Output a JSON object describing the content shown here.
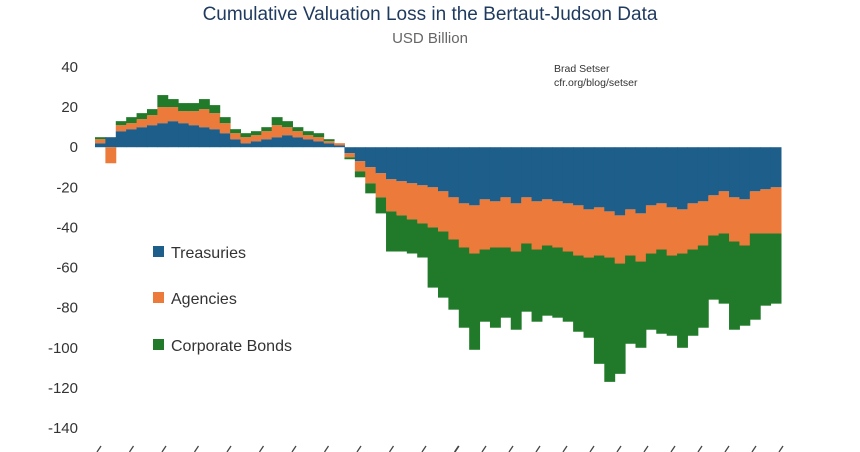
{
  "chart_data": {
    "type": "bar",
    "stacked": true,
    "title": "Cumulative Valuation Loss in the Bertaut-Judson Data",
    "subtitle": "USD Billion",
    "attribution": [
      "Brad Setser",
      "cfr.org/blog/setser"
    ],
    "ylim": [
      -140,
      40
    ],
    "yticks": [
      40,
      20,
      0,
      -20,
      -40,
      -60,
      -80,
      -100,
      -120,
      -140
    ],
    "grid": false,
    "legend_position": "left-center",
    "series": [
      {
        "name": "Treasuries",
        "color": "#1d5f8a",
        "values": [
          2,
          5,
          8,
          9,
          10,
          11,
          12,
          13,
          12,
          11,
          10,
          9,
          7,
          4,
          2,
          3,
          4,
          5,
          6,
          5,
          4,
          3,
          2,
          1,
          -3,
          -7,
          -10,
          -13,
          -16,
          -17,
          -18,
          -19,
          -20,
          -22,
          -25,
          -28,
          -29,
          -26,
          -27,
          -25,
          -28,
          -25,
          -27,
          -26,
          -27,
          -28,
          -29,
          -31,
          -30,
          -32,
          -34,
          -31,
          -33,
          -29,
          -28,
          -30,
          -31,
          -28,
          -27,
          -24,
          -22,
          -25,
          -26,
          -22,
          -21,
          -20
        ]
      },
      {
        "name": "Agencies",
        "color": "#ec7a3a",
        "values": [
          2,
          -8,
          3,
          3,
          4,
          5,
          8,
          7,
          6,
          7,
          9,
          8,
          5,
          3,
          3,
          3,
          4,
          6,
          4,
          3,
          2,
          2,
          1,
          1,
          -2,
          -5,
          -8,
          -12,
          -16,
          -17,
          -18,
          -19,
          -20,
          -20,
          -21,
          -22,
          -24,
          -25,
          -23,
          -25,
          -24,
          -23,
          -24,
          -23,
          -23,
          -24,
          -25,
          -24,
          -24,
          -23,
          -24,
          -23,
          -24,
          -24,
          -23,
          -24,
          -22,
          -23,
          -22,
          -20,
          -21,
          -22,
          -23,
          -21,
          -22,
          -23
        ]
      },
      {
        "name": "Corporate Bonds",
        "color": "#217a2a",
        "values": [
          1,
          0,
          2,
          3,
          3,
          3,
          6,
          4,
          4,
          4,
          5,
          4,
          3,
          2,
          2,
          2,
          2,
          4,
          3,
          2,
          2,
          2,
          1,
          0,
          -1,
          -3,
          -5,
          -8,
          -20,
          -18,
          -17,
          -17,
          -30,
          -33,
          -35,
          -40,
          -48,
          -36,
          -40,
          -35,
          -39,
          -34,
          -36,
          -35,
          -35,
          -35,
          -38,
          -40,
          -54,
          -62,
          -55,
          -44,
          -43,
          -38,
          -42,
          -40,
          -47,
          -43,
          -41,
          -32,
          -35,
          -44,
          -40,
          -43,
          -36,
          -35
        ]
      }
    ]
  }
}
